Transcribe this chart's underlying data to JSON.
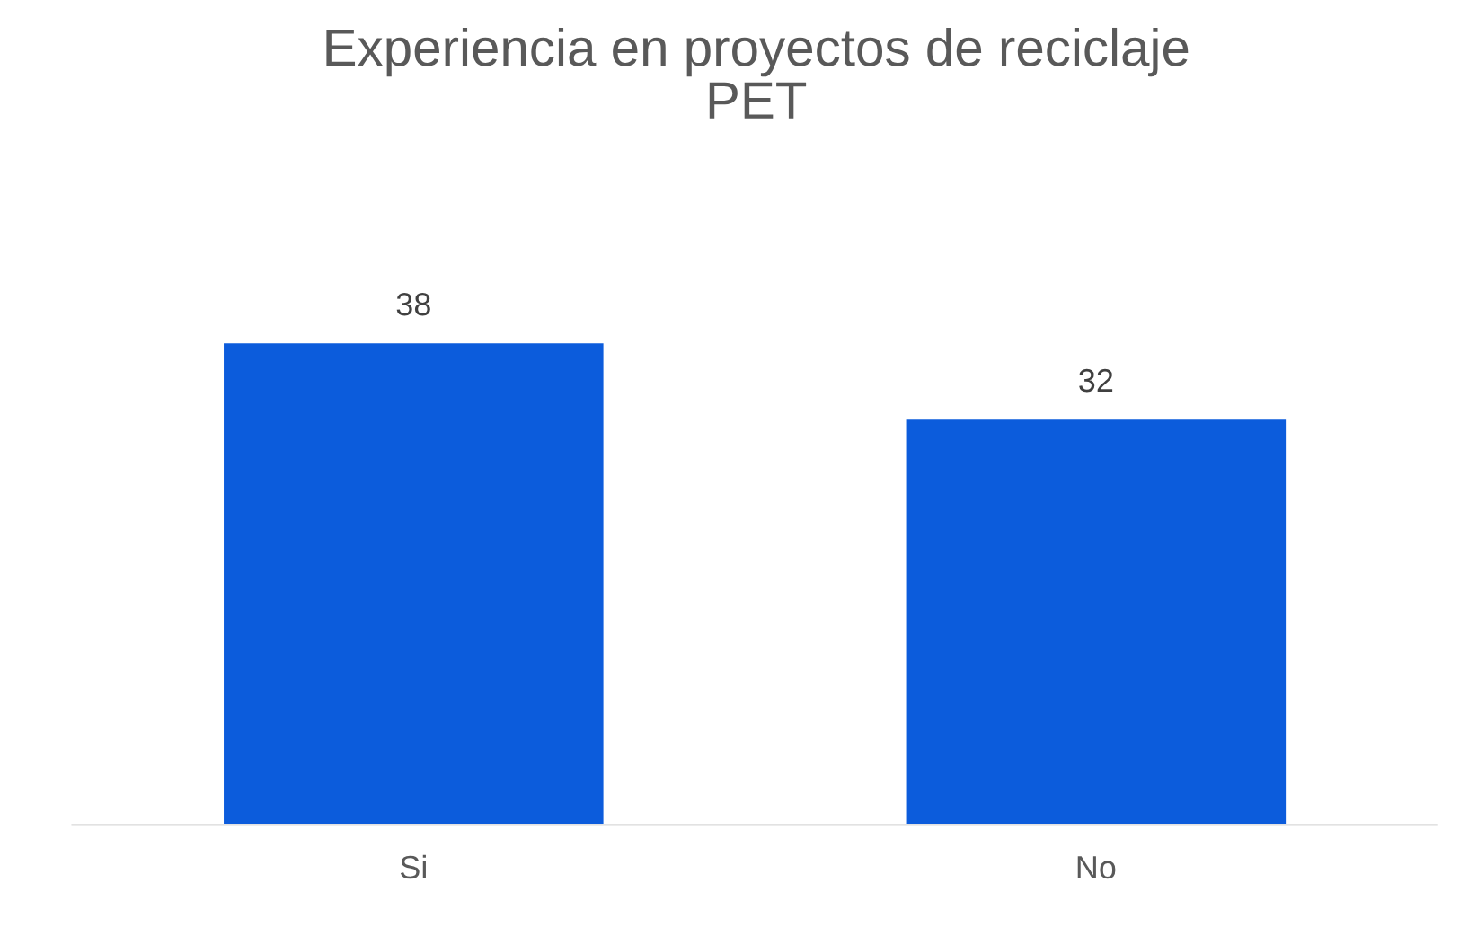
{
  "chart_data": {
    "type": "bar",
    "title": "Experiencia en proyectos de reciclaje\nPET",
    "categories": [
      "Si",
      "No"
    ],
    "values": [
      38,
      32
    ],
    "color": "#0c5cdc",
    "data_labels": true,
    "grid": false,
    "legend": false
  }
}
